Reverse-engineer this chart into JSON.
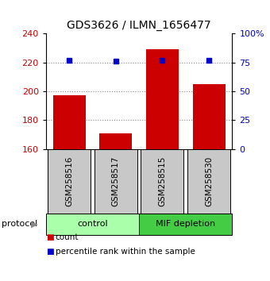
{
  "title": "GDS3626 / ILMN_1656477",
  "samples": [
    "GSM258516",
    "GSM258517",
    "GSM258515",
    "GSM258530"
  ],
  "bar_values": [
    197,
    171,
    229,
    205
  ],
  "percentile_values": [
    77,
    76,
    77,
    77
  ],
  "bar_color": "#cc0000",
  "percentile_color": "#0000cc",
  "ylim_left": [
    160,
    240
  ],
  "ylim_right": [
    0,
    100
  ],
  "yticks_left": [
    160,
    180,
    200,
    220,
    240
  ],
  "yticks_right": [
    0,
    25,
    50,
    75,
    100
  ],
  "ytick_labels_right": [
    "0",
    "25",
    "50",
    "75",
    "100%"
  ],
  "groups": [
    {
      "label": "control",
      "color": "#aaffaa"
    },
    {
      "label": "MIF depletion",
      "color": "#44cc44"
    }
  ],
  "sample_box_color": "#c8c8c8",
  "legend_items": [
    {
      "label": "count",
      "color": "#cc0000"
    },
    {
      "label": "percentile rank within the sample",
      "color": "#0000cc"
    }
  ],
  "bar_width": 0.7,
  "dotted_line_color": "#888888",
  "title_fontsize": 10,
  "tick_fontsize": 8,
  "sample_label_fontsize": 7.5
}
